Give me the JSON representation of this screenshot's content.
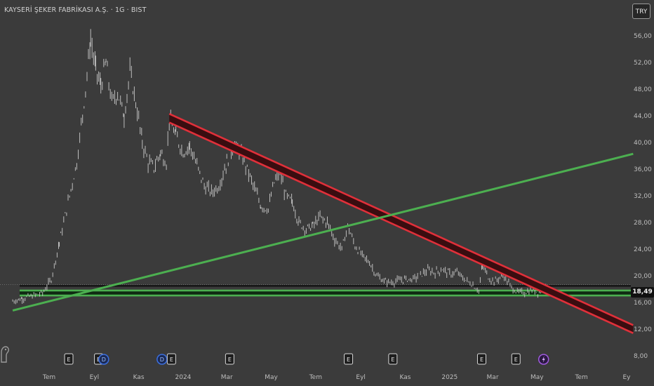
{
  "header": {
    "symbol_title": "KAYSERİ ŞEKER FABRİKASI A.Ş. · 1G · BIST",
    "currency_label": "TRY"
  },
  "price_tag": {
    "value_label": "18,49"
  },
  "colors": {
    "background": "#3b3b3b",
    "price_bars": "#bdbdbd",
    "support_green": "#4caf50",
    "resistance_red": "#e0303a",
    "resistance_fill": "#3a0d10",
    "support_fill": "#0f2a12"
  },
  "chart_data": {
    "type": "line",
    "title": "",
    "xlabel": "",
    "ylabel": "",
    "ylim": [
      8,
      56
    ],
    "y_tick_labels": [
      "56,00",
      "52,00",
      "48,00",
      "44,00",
      "40,00",
      "36,00",
      "32,00",
      "28,00",
      "24,00",
      "20,00",
      "16,00",
      "12,00",
      "8,00"
    ],
    "y_tick_values": [
      56,
      52,
      48,
      44,
      40,
      36,
      32,
      28,
      24,
      20,
      16,
      12,
      8
    ],
    "x_axis_labels": [
      {
        "label": "Tem",
        "date": "2023-07-01"
      },
      {
        "label": "Eyl",
        "date": "2023-09-01"
      },
      {
        "label": "Kas",
        "date": "2023-11-01"
      },
      {
        "label": "2024",
        "date": "2024-01-01"
      },
      {
        "label": "Mar",
        "date": "2024-03-01"
      },
      {
        "label": "May",
        "date": "2024-05-01"
      },
      {
        "label": "Tem",
        "date": "2024-07-01"
      },
      {
        "label": "Eyl",
        "date": "2024-09-01"
      },
      {
        "label": "Kas",
        "date": "2024-11-01"
      },
      {
        "label": "2025",
        "date": "2025-01-01"
      },
      {
        "label": "Mar",
        "date": "2025-03-01"
      },
      {
        "label": "May",
        "date": "2025-05-01"
      },
      {
        "label": "Tem",
        "date": "2025-07-01"
      },
      {
        "label": "Ey",
        "date": "2025-09-01"
      }
    ],
    "series": [
      {
        "values": [
          [
            "2023-05-12",
            16.2
          ],
          [
            "2023-05-25",
            16.6
          ],
          [
            "2023-06-08",
            17.0
          ],
          [
            "2023-06-22",
            17.4
          ],
          [
            "2023-07-04",
            19.5
          ],
          [
            "2023-07-15",
            25.0
          ],
          [
            "2023-07-27",
            31.0
          ],
          [
            "2023-08-08",
            37.0
          ],
          [
            "2023-08-20",
            48.0
          ],
          [
            "2023-08-27",
            55.5
          ],
          [
            "2023-09-03",
            51.0
          ],
          [
            "2023-09-10",
            48.5
          ],
          [
            "2023-09-17",
            52.0
          ],
          [
            "2023-09-25",
            46.0
          ],
          [
            "2023-10-03",
            47.5
          ],
          [
            "2023-10-12",
            44.0
          ],
          [
            "2023-10-20",
            50.5
          ],
          [
            "2023-10-28",
            46.0
          ],
          [
            "2023-11-06",
            40.0
          ],
          [
            "2023-11-14",
            37.0
          ],
          [
            "2023-11-22",
            36.2
          ],
          [
            "2023-12-01",
            38.5
          ],
          [
            "2023-12-09",
            37.0
          ],
          [
            "2023-12-13",
            43.5
          ],
          [
            "2023-12-22",
            41.0
          ],
          [
            "2024-01-01",
            38.5
          ],
          [
            "2024-01-10",
            39.5
          ],
          [
            "2024-01-20",
            36.5
          ],
          [
            "2024-01-30",
            33.5
          ],
          [
            "2024-02-09",
            32.5
          ],
          [
            "2024-02-19",
            33.5
          ],
          [
            "2024-03-01",
            37.0
          ],
          [
            "2024-03-10",
            39.5
          ],
          [
            "2024-03-19",
            38.5
          ],
          [
            "2024-03-29",
            36.0
          ],
          [
            "2024-04-08",
            33.0
          ],
          [
            "2024-04-17",
            30.5
          ],
          [
            "2024-04-27",
            30.0
          ],
          [
            "2024-05-05",
            34.0
          ],
          [
            "2024-05-13",
            35.5
          ],
          [
            "2024-05-21",
            32.0
          ],
          [
            "2024-05-30",
            31.0
          ],
          [
            "2024-06-08",
            28.0
          ],
          [
            "2024-06-18",
            27.0
          ],
          [
            "2024-06-27",
            27.5
          ],
          [
            "2024-07-07",
            28.8
          ],
          [
            "2024-07-17",
            28.0
          ],
          [
            "2024-07-27",
            25.5
          ],
          [
            "2024-08-06",
            24.0
          ],
          [
            "2024-08-14",
            27.5
          ],
          [
            "2024-08-24",
            24.5
          ],
          [
            "2024-09-03",
            23.0
          ],
          [
            "2024-09-13",
            22.0
          ],
          [
            "2024-09-23",
            20.0
          ],
          [
            "2024-10-03",
            19.2
          ],
          [
            "2024-10-13",
            19.0
          ],
          [
            "2024-10-23",
            19.3
          ],
          [
            "2024-11-02",
            19.5
          ],
          [
            "2024-11-12",
            19.5
          ],
          [
            "2024-11-22",
            20.2
          ],
          [
            "2024-12-02",
            20.8
          ],
          [
            "2024-12-12",
            20.5
          ],
          [
            "2024-12-22",
            21.0
          ],
          [
            "2025-01-01",
            20.3
          ],
          [
            "2025-01-11",
            20.5
          ],
          [
            "2025-01-21",
            19.5
          ],
          [
            "2025-01-31",
            18.8
          ],
          [
            "2025-02-10",
            17.8
          ],
          [
            "2025-02-15",
            21.5
          ],
          [
            "2025-02-25",
            19.5
          ],
          [
            "2025-03-05",
            19.2
          ],
          [
            "2025-03-15",
            20.2
          ],
          [
            "2025-03-25",
            18.5
          ],
          [
            "2025-04-04",
            17.5
          ],
          [
            "2025-04-14",
            17.5
          ],
          [
            "2025-04-24",
            17.8
          ],
          [
            "2025-05-04",
            17.5
          ],
          [
            "2025-05-11",
            18.2
          ],
          [
            "2025-05-15",
            18.49
          ]
        ]
      }
    ],
    "trend_lines": [
      {
        "role": "resistance-upper",
        "color": "#e0303a",
        "from": [
          "2023-12-13",
          44.3
        ],
        "to": [
          "2025-09-10",
          12.6
        ]
      },
      {
        "role": "resistance-lower",
        "color": "#e0303a",
        "from": [
          "2023-12-13",
          43.0
        ],
        "to": [
          "2025-09-10",
          11.4
        ]
      },
      {
        "role": "rising-support",
        "color": "#4caf50",
        "from": [
          "2023-05-12",
          14.8
        ],
        "to": [
          "2025-09-10",
          38.3
        ]
      }
    ],
    "horizontal_levels": [
      {
        "role": "support-band-top",
        "color": "#4caf50",
        "value": 17.8
      },
      {
        "role": "support-band-bottom",
        "color": "#4caf50",
        "value": 17.05
      },
      {
        "role": "last-price",
        "color": "#111111",
        "value": 18.49
      }
    ],
    "event_markers": [
      {
        "type": "E",
        "date": "2023-07-28"
      },
      {
        "type": "E",
        "date": "2023-09-07"
      },
      {
        "type": "D",
        "date": "2023-09-14"
      },
      {
        "type": "D",
        "date": "2023-12-03"
      },
      {
        "type": "E",
        "date": "2023-12-16"
      },
      {
        "type": "E",
        "date": "2024-03-05"
      },
      {
        "type": "E",
        "date": "2024-08-15"
      },
      {
        "type": "E",
        "date": "2024-10-15"
      },
      {
        "type": "E",
        "date": "2025-02-14"
      },
      {
        "type": "E",
        "date": "2025-04-02"
      },
      {
        "type": "lightning",
        "date": "2025-05-10"
      }
    ]
  }
}
